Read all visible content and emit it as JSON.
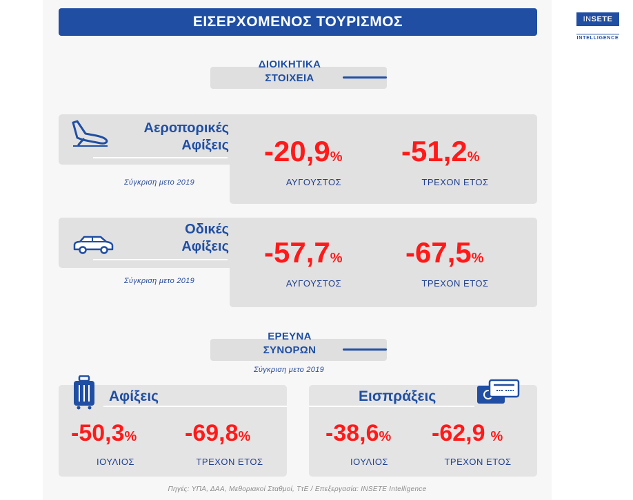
{
  "header": {
    "title": "ΕΙΣΕΡΧΟΜΕΝΟΣ ΤΟΥΡΙΣΜΟΣ"
  },
  "logo": {
    "main_prefix": "IN",
    "main_suffix": "SETE",
    "sub": "INTELLIGENCE"
  },
  "admin_section": {
    "title_line1": "ΔΙΟΙΚΗΤΙΚΑ",
    "title_line2": "ΣΤΟΙΧΕΙΑ"
  },
  "air": {
    "category_line1": "Αεροπορικές",
    "category_line2": "Αφίξεις",
    "comparison": "Σύγκριση μετο 2019",
    "month_value": "-20,9",
    "month_label": "ΑΥΓΟΥΣΤΟΣ",
    "ytd_value": "-51,2",
    "ytd_label": "ΤΡΕΧΟΝ ΕΤΟΣ",
    "icon": "airplane-landing-icon"
  },
  "road": {
    "category_line1": "Οδικές",
    "category_line2": "Αφίξεις",
    "comparison": "Σύγκριση μετο 2019",
    "month_value": "-57,7",
    "month_label": "ΑΥΓΟΥΣΤΟΣ",
    "ytd_value": "-67,5",
    "ytd_label": "ΤΡΕΧΟΝ ΕΤΟΣ",
    "icon": "car-icon"
  },
  "border_section": {
    "title_line1": "ΕΡΕΥΝΑ",
    "title_line2": "ΣΥΝΟΡΩΝ",
    "comparison": "Σύγκριση μετο 2019"
  },
  "arrivals": {
    "category": "Αφίξεις",
    "month_value": "-50,3",
    "month_label": "ΙΟΥΛΙΟΣ",
    "ytd_value": "-69,8",
    "ytd_label": "ΤΡΕΧΟΝ ΕΤΟΣ",
    "icon": "suitcase-icon"
  },
  "receipts": {
    "category": "Εισπράξεις",
    "month_value": "-38,6",
    "month_label": "ΙΟΥΛΙΟΣ",
    "ytd_value": "-62,9",
    "ytd_label": "ΤΡΕΧΟΝ ΕΤΟΣ",
    "icon": "credit-card-icon"
  },
  "percent": "%",
  "footer": "Πηγές: ΥΠΑ, ΔΑΑ, Μεθοριακοί Σταθμοί, ΤτΕ / Επεξεργασία: INSETE Intelligence",
  "colors": {
    "accent": "#1f4ea3",
    "negative": "#ff1a1a",
    "card": "#e1e1e1"
  }
}
